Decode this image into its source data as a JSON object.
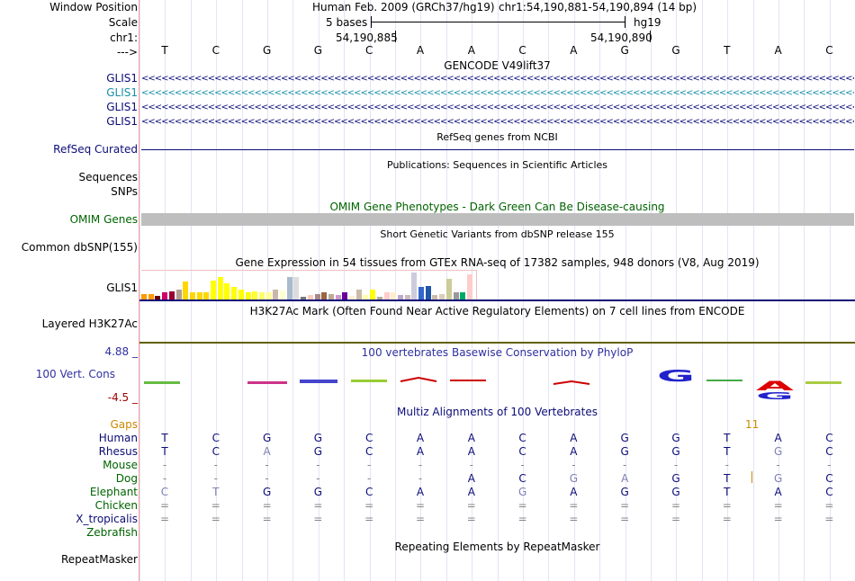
{
  "header": {
    "window_position_label": "Window Position",
    "scale_label": "Scale",
    "chr_label": "chr1:",
    "arrow_label": "--->",
    "assembly": "Human Feb. 2009 (GRCh37/hg19)",
    "position": "chr1:54,190,881-54,190,894 (14 bp)",
    "scale_text": "5 bases",
    "scale_db": "hg19",
    "coord1": "54,190,885",
    "coord2": "54,190,890"
  },
  "sequence": [
    "T",
    "C",
    "G",
    "G",
    "C",
    "A",
    "A",
    "C",
    "A",
    "G",
    "G",
    "T",
    "A",
    "C"
  ],
  "tracks": {
    "gencode": {
      "title": "GENCODE V49lift37",
      "items": [
        "GLIS1",
        "GLIS1",
        "GLIS1",
        "GLIS1"
      ],
      "colors": [
        "#0c0c78",
        "#1a8fa8",
        "#0c0c78",
        "#0c0c78"
      ]
    },
    "refseq": {
      "label": "RefSeq Curated",
      "title": "RefSeq genes from NCBI"
    },
    "publications": {
      "title": "Publications: Sequences in Scientific Articles",
      "labels": [
        "Sequences",
        "SNPs"
      ]
    },
    "omim": {
      "title": "OMIM Gene Phenotypes - Dark Green Can Be Disease-causing",
      "label": "OMIM Genes",
      "color": "#006400"
    },
    "dbsnp": {
      "title": "Short Genetic Variants from dbSNP release 155",
      "label": "Common dbSNP(155)"
    },
    "gtex": {
      "title": "Gene Expression in 54 tissues from GTEx RNA-seq of 17382 samples, 948 donors (V8, Aug 2019)",
      "label": "GLIS1"
    },
    "h3k27ac": {
      "title": "H3K27Ac Mark (Often Found Near Active Regulatory Elements) on 7 cell lines from ENCODE",
      "label": "Layered H3K27Ac"
    },
    "phylop": {
      "title": "100 vertebrates Basewise Conservation by PhyloP",
      "label": "100 Vert. Cons",
      "max": "4.88 _",
      "min": "-4.5 _"
    },
    "multiz": {
      "title": "Multiz Alignments of 100 Vertebrates",
      "gaps_label": "Gaps",
      "gap_count": "11"
    },
    "repeatmasker": {
      "title": "Repeating Elements by RepeatMasker",
      "label": "RepeatMasker"
    }
  },
  "alignments": [
    {
      "species": "Human",
      "color": "#0c0c78",
      "bases": [
        "T",
        "C",
        "G",
        "G",
        "C",
        "A",
        "A",
        "C",
        "A",
        "G",
        "G",
        "T",
        "A",
        "C"
      ]
    },
    {
      "species": "Rhesus",
      "color": "#0c0c78",
      "bases": [
        "T",
        "C",
        "A",
        "G",
        "C",
        "A",
        "A",
        "C",
        "A",
        "G",
        "G",
        "T",
        "G",
        "C"
      ]
    },
    {
      "species": "Mouse",
      "color": "#006400",
      "bases": [
        "-",
        "-",
        "-",
        "-",
        "-",
        "-",
        "-",
        "-",
        "-",
        "-",
        "-",
        "-",
        "-",
        "-"
      ]
    },
    {
      "species": "Dog",
      "color": "#006400",
      "bases": [
        "-",
        "-",
        "-",
        "-",
        "-",
        "-",
        "A",
        "C",
        "G",
        "A",
        "G",
        "T",
        "G",
        "C"
      ]
    },
    {
      "species": "Elephant",
      "color": "#006400",
      "bases": [
        "C",
        "T",
        "G",
        "G",
        "C",
        "A",
        "A",
        "G",
        "A",
        "G",
        "G",
        "T",
        "A",
        "C"
      ]
    },
    {
      "species": "Chicken",
      "color": "#006400",
      "bases": [
        "=",
        "=",
        "=",
        "=",
        "=",
        "=",
        "=",
        "=",
        "=",
        "=",
        "=",
        "=",
        "=",
        "="
      ]
    },
    {
      "species": "X_tropicalis",
      "color": "#0c0c78",
      "bases": [
        "=",
        "=",
        "=",
        "=",
        "=",
        "=",
        "=",
        "=",
        "=",
        "=",
        "=",
        "=",
        "=",
        "="
      ]
    },
    {
      "species": "Zebrafish",
      "color": "#006400",
      "bases": [
        "",
        "",
        "",
        "",
        "",
        "",
        "",
        "",
        "",
        "",
        "",
        "",
        "",
        ""
      ]
    }
  ],
  "gtex_values": [
    0.25,
    0.25,
    0.15,
    0.3,
    0.35,
    0.45,
    0.8,
    0.3,
    0.3,
    0.3,
    0.85,
    1.0,
    0.7,
    0.55,
    0.45,
    0.3,
    0.35,
    0.3,
    0.3,
    0.45,
    0.4,
    1.0,
    1.0,
    0.1,
    0.2,
    0.25,
    0.3,
    0.25,
    0.2,
    0.3,
    0.15,
    0.45,
    0.2,
    0.45,
    0.1,
    0.3,
    0.3,
    0.2,
    0.2,
    1.2,
    0.55,
    0.6,
    0.2,
    0.25,
    0.9,
    0.3,
    0.3,
    1.1
  ],
  "gtex_colors": [
    "#ff9900",
    "#ff9900",
    "#660000",
    "#cc0066",
    "#990033",
    "#b0a08f",
    "#ffd700",
    "#ffd700",
    "#ffd700",
    "#ffd700",
    "#ffff00",
    "#ffff00",
    "#ffff00",
    "#ffff00",
    "#ffff00",
    "#ffff00",
    "#ffff33",
    "#ffff66",
    "#ffff99",
    "#c9b8a8",
    "#ffffcc",
    "#aabbcc",
    "#dddddd",
    "#777777",
    "#ffccbb",
    "#aa8888",
    "#996644",
    "#bbaa99",
    "#cc99cc",
    "#660099",
    "#ffeecc",
    "#ccbbaa",
    "#ffffaa",
    "#ffff00",
    "#bbaa99",
    "#ffcccc",
    "#ffeecc",
    "#bbaacc",
    "#ccbbbb",
    "#ccccdd",
    "#3366cc",
    "#2255aa",
    "#ccbbaa",
    "#ddccbb",
    "#cccc99",
    "#999999",
    "#00aa66",
    "#ffcccc"
  ]
}
